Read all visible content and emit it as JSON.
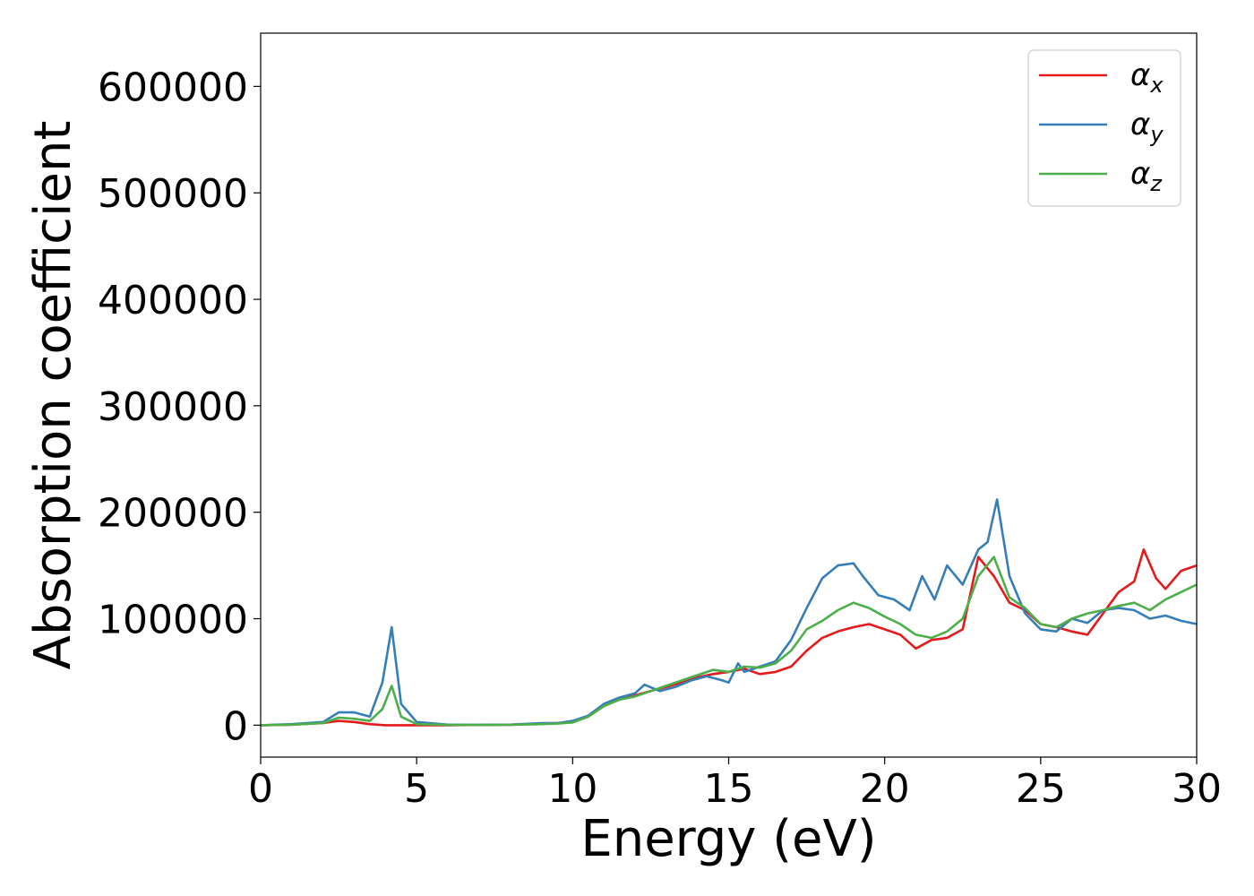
{
  "chart_data": {
    "type": "line",
    "title": "",
    "xlabel": "Energy (eV)",
    "ylabel": "Absorption coefficient",
    "xlim": [
      0,
      30
    ],
    "ylim": [
      -30000,
      650000
    ],
    "xticks": [
      0,
      5,
      10,
      15,
      20,
      25,
      30
    ],
    "xtick_labels": [
      "0",
      "5",
      "10",
      "15",
      "20",
      "25",
      "30"
    ],
    "yticks": [
      0,
      100000,
      200000,
      300000,
      400000,
      500000,
      600000
    ],
    "ytick_labels": [
      "0",
      "100000",
      "200000",
      "300000",
      "400000",
      "500000",
      "600000"
    ],
    "grid": false,
    "legend_position": "top-right",
    "series": [
      {
        "name": "α",
        "subscript": "x",
        "color": "#e41a1c",
        "x": [
          0,
          1,
          2,
          2.5,
          3,
          3.5,
          4,
          5,
          6,
          7,
          8,
          9,
          9.5,
          10,
          10.5,
          11,
          11.5,
          12,
          12.5,
          13,
          13.5,
          14,
          14.5,
          15,
          15.5,
          16,
          16.5,
          17,
          17.5,
          18,
          18.5,
          19,
          19.5,
          20,
          20.5,
          21,
          21.5,
          22,
          22.5,
          23,
          23.5,
          24,
          24.5,
          25,
          25.5,
          26,
          26.5,
          27,
          27.5,
          28,
          28.3,
          28.7,
          29,
          29.5,
          30
        ],
        "y": [
          0,
          500,
          2000,
          4000,
          3000,
          1000,
          0,
          0,
          0,
          200,
          500,
          1500,
          2000,
          3000,
          8000,
          18000,
          24000,
          28000,
          32000,
          36000,
          40000,
          45000,
          48000,
          50000,
          53000,
          48000,
          50000,
          55000,
          70000,
          82000,
          88000,
          92000,
          95000,
          90000,
          85000,
          72000,
          80000,
          82000,
          90000,
          158000,
          140000,
          115000,
          108000,
          95000,
          92000,
          88000,
          85000,
          105000,
          125000,
          135000,
          165000,
          138000,
          128000,
          145000,
          150000
        ]
      },
      {
        "name": "α",
        "subscript": "y",
        "color": "#377eb8",
        "x": [
          0,
          1,
          2,
          2.5,
          3,
          3.5,
          3.9,
          4.2,
          4.5,
          5,
          6,
          7,
          8,
          9,
          9.5,
          10,
          10.5,
          11,
          11.5,
          12,
          12.3,
          12.8,
          13.3,
          13.8,
          14.3,
          14.8,
          15,
          15.3,
          15.5,
          16,
          16.5,
          17,
          17.5,
          18,
          18.5,
          19,
          19.3,
          19.8,
          20.3,
          20.8,
          21.2,
          21.6,
          22,
          22.5,
          23,
          23.3,
          23.6,
          24,
          24.5,
          25,
          25.5,
          26,
          26.5,
          27,
          27.5,
          28,
          28.5,
          29,
          29.5,
          30
        ],
        "y": [
          0,
          1000,
          3000,
          12000,
          12000,
          8000,
          40000,
          92000,
          20000,
          3000,
          500,
          300,
          500,
          2000,
          2000,
          4000,
          9000,
          20000,
          26000,
          30000,
          38000,
          32000,
          36000,
          42000,
          46000,
          42000,
          40000,
          58000,
          50000,
          55000,
          60000,
          80000,
          110000,
          138000,
          150000,
          152000,
          140000,
          122000,
          118000,
          108000,
          140000,
          118000,
          150000,
          132000,
          165000,
          172000,
          212000,
          140000,
          105000,
          90000,
          88000,
          100000,
          96000,
          108000,
          110000,
          108000,
          100000,
          103000,
          98000,
          95000
        ]
      },
      {
        "name": "α",
        "subscript": "z",
        "color": "#4daf4a",
        "x": [
          0,
          1,
          2,
          2.5,
          3,
          3.5,
          3.9,
          4.2,
          4.5,
          5,
          6,
          7,
          8,
          9,
          9.5,
          10,
          10.5,
          11,
          11.5,
          12,
          12.5,
          13,
          13.5,
          14,
          14.5,
          15,
          15.5,
          16,
          16.5,
          17,
          17.5,
          18,
          18.5,
          19,
          19.5,
          20,
          20.5,
          21,
          21.5,
          22,
          22.5,
          23,
          23.5,
          24,
          24.5,
          25,
          25.5,
          26,
          26.5,
          27,
          27.5,
          28,
          28.5,
          29,
          29.5,
          30
        ],
        "y": [
          0,
          500,
          2000,
          7000,
          6000,
          4000,
          15000,
          37000,
          8000,
          1000,
          200,
          200,
          300,
          1000,
          1500,
          2500,
          8000,
          18000,
          24000,
          27000,
          32000,
          37000,
          42000,
          47000,
          52000,
          50000,
          55000,
          54000,
          58000,
          70000,
          90000,
          98000,
          108000,
          115000,
          110000,
          102000,
          95000,
          85000,
          82000,
          88000,
          100000,
          140000,
          158000,
          120000,
          110000,
          95000,
          92000,
          100000,
          105000,
          108000,
          112000,
          115000,
          108000,
          118000,
          125000,
          132000
        ]
      }
    ]
  }
}
